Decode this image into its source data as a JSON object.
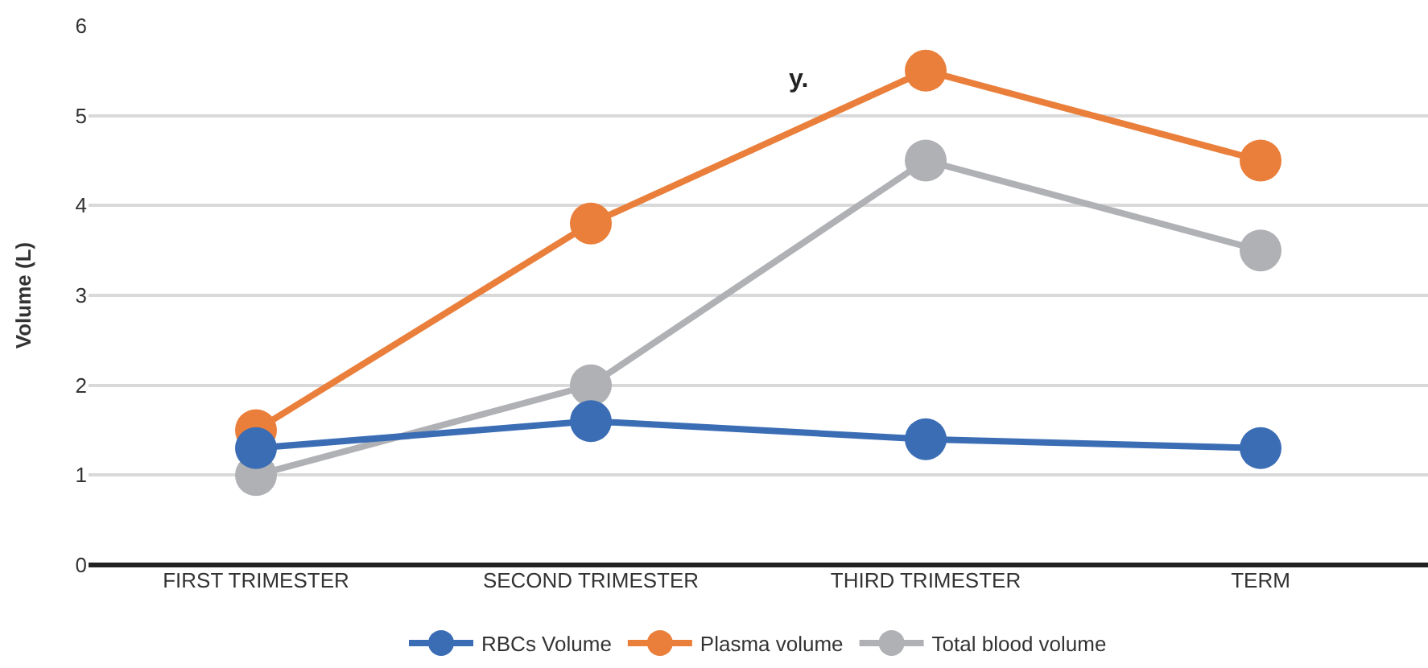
{
  "chart_data": {
    "type": "line",
    "ylabel": "Volume (L)",
    "categories": [
      "FIRST TRIMESTER",
      "SECOND TRIMESTER",
      "THIRD TRIMESTER",
      "TERM"
    ],
    "series": [
      {
        "name": "RBCs Volume",
        "color": "#3b6db5",
        "values": [
          1.3,
          1.6,
          1.4,
          1.3
        ]
      },
      {
        "name": "Plasma volume",
        "color": "#ea7f3b",
        "values": [
          1.5,
          3.8,
          5.5,
          4.5
        ]
      },
      {
        "name": "Total blood volume",
        "color": "#b0b1b4",
        "values": [
          1.0,
          2.0,
          4.5,
          3.5
        ]
      }
    ],
    "ylim": [
      0,
      6
    ],
    "yticks": [
      0,
      1,
      2,
      3,
      4,
      5,
      6
    ],
    "grid": "y",
    "legend": "bottom",
    "marker": "circle",
    "line_style": "solid",
    "annotations": [
      "y."
    ]
  }
}
